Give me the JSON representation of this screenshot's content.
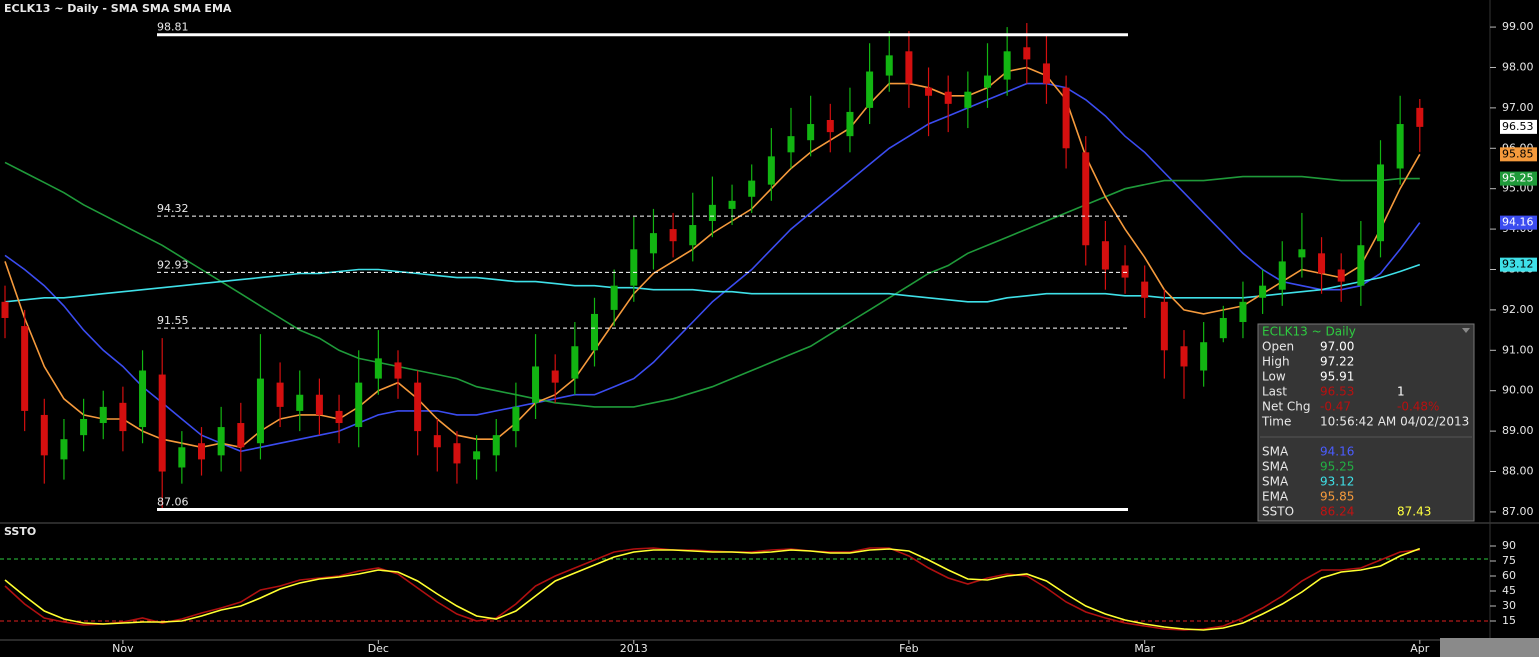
{
  "chart_data": [
    {
      "type": "candlestick",
      "title": "ECLK13 ~ Daily  -  SMA SMA SMA EMA",
      "categories": [
        null,
        null,
        null,
        null,
        null,
        null,
        "Nov",
        null,
        null,
        null,
        null,
        null,
        null,
        null,
        null,
        null,
        null,
        null,
        null,
        "Dec",
        null,
        null,
        null,
        null,
        null,
        null,
        null,
        null,
        null,
        null,
        null,
        null,
        "2013",
        null,
        null,
        null,
        null,
        null,
        null,
        null,
        null,
        null,
        null,
        null,
        null,
        null,
        "Feb",
        null,
        null,
        null,
        null,
        null,
        null,
        null,
        null,
        null,
        null,
        null,
        "Mar",
        null,
        null,
        null,
        null,
        null,
        null,
        null,
        null,
        null,
        null,
        null,
        null,
        null,
        "Apr"
      ],
      "open": [
        92.2,
        91.6,
        89.4,
        88.3,
        88.9,
        89.2,
        89.7,
        89.1,
        90.4,
        88.1,
        88.7,
        88.4,
        89.2,
        88.7,
        90.2,
        89.5,
        89.9,
        89.5,
        89.1,
        90.3,
        90.7,
        90.2,
        88.9,
        88.7,
        88.3,
        88.4,
        89.0,
        89.7,
        90.5,
        90.3,
        91.0,
        92.0,
        92.6,
        93.4,
        94.0,
        93.6,
        94.2,
        94.5,
        94.8,
        95.1,
        95.9,
        96.2,
        96.7,
        96.3,
        97.0,
        97.8,
        98.4,
        97.5,
        97.4,
        97.0,
        97.5,
        97.7,
        98.5,
        98.1,
        97.5,
        95.9,
        93.7,
        93.1,
        92.7,
        92.2,
        91.1,
        90.5,
        91.3,
        91.7,
        92.3,
        92.5,
        93.3,
        93.4,
        93.0,
        92.6,
        93.7,
        95.5,
        97.0
      ],
      "high": [
        92.6,
        92.0,
        89.8,
        89.3,
        89.8,
        90.0,
        90.1,
        91.0,
        91.3,
        89.0,
        89.1,
        89.6,
        89.7,
        91.4,
        90.7,
        90.5,
        90.3,
        89.9,
        91.0,
        91.5,
        91.0,
        90.5,
        89.3,
        89.0,
        88.9,
        89.3,
        90.2,
        91.4,
        90.9,
        91.7,
        92.3,
        93.0,
        94.3,
        94.5,
        94.4,
        94.9,
        95.3,
        95.1,
        95.6,
        96.5,
        97.0,
        97.3,
        97.1,
        97.5,
        98.6,
        98.9,
        98.9,
        98.0,
        97.8,
        97.9,
        98.6,
        99.0,
        99.1,
        98.8,
        97.8,
        96.3,
        94.2,
        93.6,
        93.1,
        92.5,
        91.5,
        91.7,
        92.1,
        92.7,
        93.0,
        93.7,
        94.4,
        93.8,
        93.4,
        94.2,
        96.2,
        97.3,
        97.22
      ],
      "low": [
        91.3,
        89.0,
        87.7,
        87.8,
        88.5,
        88.8,
        88.5,
        88.7,
        87.06,
        87.7,
        87.9,
        88.0,
        88.0,
        88.3,
        89.1,
        89.0,
        88.9,
        88.7,
        88.6,
        89.9,
        89.8,
        88.4,
        88.0,
        87.7,
        87.8,
        88.0,
        88.6,
        89.3,
        89.7,
        89.9,
        90.6,
        91.6,
        92.2,
        93.0,
        93.3,
        93.2,
        93.8,
        94.1,
        94.4,
        94.7,
        95.5,
        95.8,
        95.9,
        95.9,
        96.6,
        97.4,
        97.0,
        96.3,
        96.4,
        96.5,
        97.0,
        97.3,
        97.6,
        97.1,
        95.5,
        93.1,
        92.5,
        92.4,
        91.8,
        90.3,
        89.8,
        90.1,
        91.2,
        91.3,
        91.9,
        92.1,
        92.8,
        92.4,
        92.2,
        92.1,
        93.3,
        95.1,
        95.91
      ],
      "close": [
        91.8,
        89.5,
        88.4,
        88.8,
        89.3,
        89.6,
        89.0,
        90.5,
        88.0,
        88.6,
        88.3,
        89.1,
        88.6,
        90.3,
        89.6,
        89.9,
        89.4,
        89.2,
        90.2,
        90.8,
        90.3,
        89.0,
        88.6,
        88.2,
        88.5,
        88.9,
        89.6,
        90.6,
        90.2,
        91.1,
        91.9,
        92.6,
        93.5,
        93.9,
        93.7,
        94.1,
        94.6,
        94.7,
        95.2,
        95.8,
        96.3,
        96.6,
        96.4,
        96.9,
        97.9,
        98.3,
        97.6,
        97.3,
        97.1,
        97.4,
        97.8,
        98.4,
        98.2,
        97.6,
        96.0,
        93.6,
        93.0,
        92.8,
        92.3,
        91.0,
        90.6,
        91.2,
        91.8,
        92.2,
        92.6,
        93.2,
        93.5,
        92.9,
        92.7,
        93.6,
        95.6,
        96.6,
        96.53
      ],
      "up_color": "#12b512",
      "down_color": "#d40f0f",
      "series": [
        {
          "name": "SMA",
          "color": "#3b4cf0",
          "values": [
            93.35,
            93.0,
            92.6,
            92.1,
            91.5,
            91.0,
            90.6,
            90.1,
            89.7,
            89.3,
            88.9,
            88.7,
            88.5,
            88.6,
            88.7,
            88.8,
            88.9,
            89.0,
            89.2,
            89.4,
            89.5,
            89.5,
            89.5,
            89.4,
            89.4,
            89.5,
            89.6,
            89.7,
            89.8,
            89.9,
            89.9,
            90.1,
            90.3,
            90.7,
            91.2,
            91.7,
            92.2,
            92.6,
            93.0,
            93.5,
            94.0,
            94.4,
            94.8,
            95.2,
            95.6,
            96.0,
            96.3,
            96.6,
            96.8,
            97.0,
            97.2,
            97.4,
            97.6,
            97.6,
            97.5,
            97.2,
            96.8,
            96.3,
            95.9,
            95.4,
            94.9,
            94.4,
            93.9,
            93.4,
            93.0,
            92.7,
            92.6,
            92.5,
            92.5,
            92.6,
            92.9,
            93.5,
            94.16
          ]
        },
        {
          "name": "SMA",
          "color": "#1f9a3a",
          "values": [
            95.65,
            95.4,
            95.15,
            94.9,
            94.6,
            94.35,
            94.1,
            93.85,
            93.6,
            93.3,
            93.0,
            92.7,
            92.4,
            92.1,
            91.8,
            91.5,
            91.3,
            91.0,
            90.8,
            90.7,
            90.6,
            90.5,
            90.4,
            90.3,
            90.1,
            90.0,
            89.9,
            89.8,
            89.7,
            89.65,
            89.6,
            89.6,
            89.6,
            89.7,
            89.8,
            89.95,
            90.1,
            90.3,
            90.5,
            90.7,
            90.9,
            91.1,
            91.4,
            91.7,
            92.0,
            92.3,
            92.6,
            92.9,
            93.1,
            93.4,
            93.6,
            93.8,
            94.0,
            94.2,
            94.4,
            94.6,
            94.8,
            95.0,
            95.1,
            95.2,
            95.2,
            95.2,
            95.25,
            95.3,
            95.3,
            95.3,
            95.3,
            95.25,
            95.2,
            95.2,
            95.2,
            95.25,
            95.25
          ]
        },
        {
          "name": "SMA",
          "color": "#3fe0e8",
          "values": [
            92.2,
            92.25,
            92.3,
            92.3,
            92.35,
            92.4,
            92.45,
            92.5,
            92.55,
            92.6,
            92.65,
            92.7,
            92.75,
            92.8,
            92.85,
            92.9,
            92.9,
            92.95,
            93.0,
            93.0,
            92.95,
            92.9,
            92.85,
            92.8,
            92.8,
            92.75,
            92.7,
            92.7,
            92.65,
            92.6,
            92.6,
            92.55,
            92.55,
            92.5,
            92.5,
            92.5,
            92.45,
            92.45,
            92.4,
            92.4,
            92.4,
            92.4,
            92.4,
            92.4,
            92.4,
            92.4,
            92.35,
            92.3,
            92.25,
            92.2,
            92.2,
            92.3,
            92.35,
            92.4,
            92.4,
            92.4,
            92.4,
            92.35,
            92.35,
            92.3,
            92.3,
            92.3,
            92.3,
            92.3,
            92.35,
            92.4,
            92.45,
            92.5,
            92.6,
            92.7,
            92.8,
            92.95,
            93.12
          ]
        },
        {
          "name": "EMA",
          "color": "#f59a3c",
          "values": [
            93.2,
            91.8,
            90.6,
            89.8,
            89.4,
            89.3,
            89.3,
            89.0,
            88.8,
            88.7,
            88.6,
            88.7,
            88.6,
            89.0,
            89.3,
            89.4,
            89.4,
            89.3,
            89.6,
            90.0,
            90.2,
            89.8,
            89.3,
            88.9,
            88.8,
            88.8,
            89.2,
            89.7,
            89.9,
            90.3,
            91.0,
            91.7,
            92.4,
            92.9,
            93.2,
            93.5,
            93.9,
            94.2,
            94.5,
            95.0,
            95.5,
            95.9,
            96.2,
            96.5,
            97.1,
            97.6,
            97.6,
            97.5,
            97.3,
            97.3,
            97.5,
            97.9,
            98.0,
            97.8,
            97.2,
            95.8,
            94.8,
            94.0,
            93.3,
            92.5,
            92.0,
            91.9,
            92.0,
            92.1,
            92.4,
            92.7,
            93.0,
            92.9,
            92.8,
            93.1,
            94.0,
            95.0,
            95.85
          ]
        }
      ],
      "levels": [
        98.81,
        94.32,
        92.93,
        91.55,
        87.06
      ],
      "ylim": [
        86.8,
        99.67
      ],
      "yticks": [
        {
          "value": 87,
          "label": "87.00"
        },
        {
          "value": 88,
          "label": "88.00"
        },
        {
          "value": 89,
          "label": "89.00"
        },
        {
          "value": 90,
          "label": "90.00"
        },
        {
          "value": 91,
          "label": "91.00"
        },
        {
          "value": 92,
          "label": "92.00"
        },
        {
          "value": 93,
          "label": "93.00"
        },
        {
          "value": 94,
          "label": "94.00"
        },
        {
          "value": 95,
          "label": "95.00"
        },
        {
          "value": 96,
          "label": "96.00"
        },
        {
          "value": 97,
          "label": "97.00"
        },
        {
          "value": 98,
          "label": "98.00"
        },
        {
          "value": 99,
          "label": "99.00"
        }
      ]
    },
    {
      "type": "line",
      "title": "SSTO",
      "series": [
        {
          "name": "SSTO",
          "color": "#b01010",
          "values": [
            50,
            32,
            18,
            14,
            11,
            12,
            14,
            18,
            13,
            17,
            23,
            28,
            34,
            46,
            50,
            56,
            58,
            60,
            65,
            68,
            62,
            48,
            34,
            22,
            15,
            18,
            32,
            50,
            60,
            68,
            76,
            84,
            87,
            88,
            86,
            86,
            85,
            84,
            84,
            86,
            87,
            85,
            84,
            84,
            88,
            88,
            80,
            68,
            58,
            52,
            58,
            62,
            60,
            48,
            34,
            24,
            18,
            13,
            10,
            7,
            6,
            7,
            10,
            18,
            28,
            40,
            55,
            66,
            66,
            68,
            76,
            84,
            86.24
          ]
        },
        {
          "color": "#ffff30",
          "values": [
            56,
            40,
            25,
            17,
            13,
            12,
            13,
            14,
            14,
            15,
            20,
            26,
            30,
            38,
            47,
            53,
            57,
            59,
            62,
            66,
            64,
            55,
            42,
            30,
            20,
            17,
            25,
            40,
            55,
            63,
            71,
            79,
            84,
            86,
            86,
            85,
            84,
            84,
            83,
            84,
            86,
            85,
            83,
            83,
            86,
            87,
            85,
            76,
            66,
            57,
            56,
            60,
            62,
            55,
            42,
            30,
            22,
            16,
            12,
            9,
            7,
            6,
            8,
            13,
            22,
            32,
            44,
            58,
            64,
            66,
            70,
            80,
            87.43
          ]
        }
      ],
      "levels": [
        77,
        15
      ],
      "level_colors": [
        "#2ecc40",
        "#e02020"
      ],
      "ylim": [
        -4,
        109
      ],
      "yticks": [
        15,
        30,
        45,
        60,
        75,
        90
      ]
    }
  ],
  "info": {
    "title": "ECLK13 ~ Daily",
    "quote": [
      {
        "label": "Open",
        "value": "97.00"
      },
      {
        "label": "High",
        "value": "97.22"
      },
      {
        "label": "Low",
        "value": "95.91"
      },
      {
        "label": "Last",
        "value": "96.53",
        "extra": "1"
      },
      {
        "label": "Net Chg",
        "value": "-0.47",
        "extra": "-0.48%"
      },
      {
        "label": "Time",
        "value": "10:56:42 AM 04/02/2013"
      }
    ],
    "studies": [
      {
        "label": "SMA",
        "value": "94.16"
      },
      {
        "label": "SMA",
        "value": "95.25"
      },
      {
        "label": "SMA",
        "value": "93.12"
      },
      {
        "label": "EMA",
        "value": "95.85"
      },
      {
        "label": "SSTO",
        "value": "86.24",
        "extra": "87.43"
      }
    ]
  }
}
